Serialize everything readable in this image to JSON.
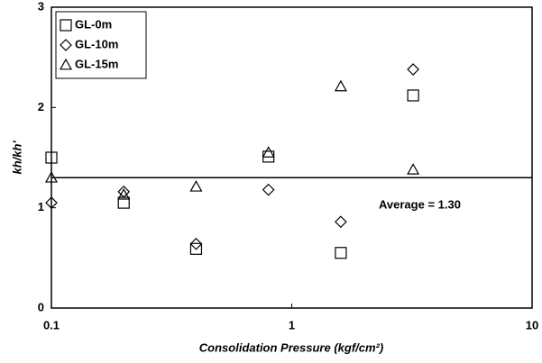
{
  "chart_data": {
    "type": "scatter",
    "xlabel": "Consolidation Pressure (kgf/cm²)",
    "ylabel": "kh/kh'",
    "x": [
      0.1,
      0.2,
      0.4,
      0.8,
      1.6,
      3.2
    ],
    "series": [
      {
        "name": "GL-0m",
        "marker": "square",
        "color": "#000000",
        "values": [
          1.5,
          1.05,
          0.59,
          1.51,
          0.55,
          2.12
        ]
      },
      {
        "name": "GL-10m",
        "marker": "diamond",
        "color": "#000000",
        "values": [
          1.05,
          1.16,
          0.64,
          1.18,
          0.86,
          2.38
        ]
      },
      {
        "name": "GL-15m",
        "marker": "triangle",
        "color": "#000000",
        "values": [
          1.3,
          1.13,
          1.21,
          1.55,
          2.21,
          1.38
        ]
      }
    ],
    "average": 1.3,
    "annotation": "Average = 1.30",
    "xscale": "log",
    "xlim": [
      0.1,
      10
    ],
    "xticks": [
      0.1,
      1,
      10
    ],
    "ylim": [
      0,
      3
    ],
    "yticks": [
      0,
      1,
      2,
      3
    ],
    "legend": "upper left"
  }
}
